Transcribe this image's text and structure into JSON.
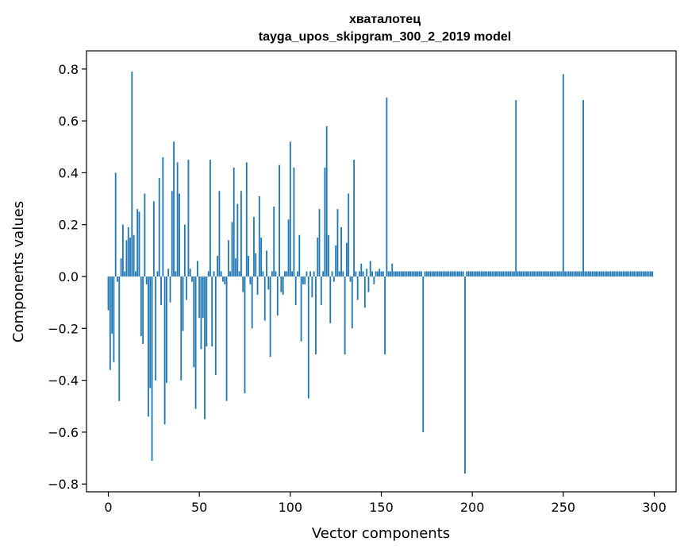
{
  "chart_data": {
    "type": "bar",
    "title": "хваталотец",
    "subtitle": "tayga_upos_skipgram_300_2_2019 model",
    "xlabel": "Vector components",
    "ylabel": "Components values",
    "xlim": [
      -12,
      312
    ],
    "ylim": [
      -0.83,
      0.87
    ],
    "xticks": [
      0,
      50,
      100,
      150,
      200,
      250,
      300
    ],
    "yticks": [
      -0.8,
      -0.6,
      -0.4,
      -0.2,
      0.0,
      0.2,
      0.4,
      0.6,
      0.8
    ],
    "ytick_labels": [
      "−0.8",
      "−0.6",
      "−0.4",
      "−0.2",
      "0.0",
      "0.2",
      "0.4",
      "0.6",
      "0.8"
    ],
    "grid": false,
    "bar_color": "#1f77b4",
    "values": [
      -0.13,
      -0.36,
      -0.22,
      -0.33,
      0.4,
      -0.02,
      -0.48,
      0.07,
      0.2,
      0.02,
      0.14,
      0.19,
      0.15,
      0.79,
      0.16,
      0.02,
      0.26,
      0.25,
      -0.23,
      -0.26,
      0.32,
      -0.03,
      -0.54,
      -0.43,
      -0.71,
      0.29,
      -0.4,
      0.02,
      0.38,
      -0.11,
      0.46,
      -0.57,
      -0.41,
      0.03,
      -0.1,
      0.33,
      0.52,
      0.02,
      0.44,
      0.32,
      -0.4,
      -0.21,
      0.2,
      -0.09,
      0.45,
      0.03,
      -0.02,
      -0.35,
      -0.51,
      0.06,
      -0.16,
      -0.28,
      -0.16,
      -0.55,
      -0.27,
      0.02,
      0.45,
      -0.27,
      0.02,
      -0.38,
      0.08,
      0.33,
      0.02,
      -0.02,
      -0.03,
      -0.48,
      0.14,
      0.02,
      0.21,
      0.42,
      0.07,
      0.28,
      0.02,
      0.33,
      -0.06,
      -0.45,
      0.44,
      0.08,
      -0.03,
      -0.2,
      0.23,
      0.09,
      -0.07,
      0.31,
      0.15,
      0.02,
      -0.17,
      0.1,
      -0.05,
      -0.31,
      0.02,
      0.27,
      0.02,
      -0.15,
      0.43,
      -0.06,
      -0.07,
      0.02,
      0.02,
      0.22,
      0.52,
      0.02,
      0.42,
      -0.11,
      0.02,
      0.16,
      -0.25,
      -0.03,
      -0.03,
      0.02,
      -0.47,
      0.02,
      -0.08,
      0.02,
      -0.3,
      0.15,
      0.26,
      -0.11,
      0.02,
      0.42,
      0.58,
      0.16,
      -0.18,
      0.02,
      -0.02,
      0.12,
      0.26,
      0.02,
      0.19,
      0.02,
      -0.3,
      0.13,
      0.32,
      -0.02,
      -0.2,
      0.45,
      0.02,
      -0.09,
      0.02,
      0.05,
      0.02,
      -0.12,
      0.03,
      -0.06,
      0.06,
      0.02,
      -0.03,
      0.02,
      0.02,
      0.03,
      0.02,
      0.02,
      -0.3,
      0.69,
      0.02,
      0.02,
      0.05,
      0.02,
      0.02,
      0.02,
      0.02,
      0.02,
      0.02,
      0.02,
      0.02,
      0.02,
      0.02,
      0.02,
      0.02,
      0.02,
      0.02,
      0.02,
      0.02,
      -0.6,
      0.02,
      0.02,
      0.02,
      0.02,
      0.02,
      0.02,
      0.02,
      0.02,
      0.02,
      0.02,
      0.02,
      0.02,
      0.02,
      0.02,
      0.02,
      0.02,
      0.02,
      0.02,
      0.02,
      0.02,
      0.02,
      0.02,
      -0.76,
      0.02,
      0.02,
      0.02,
      0.02,
      0.02,
      0.02,
      0.02,
      0.02,
      0.02,
      0.02,
      0.02,
      0.02,
      0.02,
      0.02,
      0.02,
      0.02,
      0.02,
      0.02,
      0.02,
      0.02,
      0.02,
      0.02,
      0.02,
      0.02,
      0.02,
      0.02,
      0.02,
      0.68,
      0.02,
      0.02,
      0.02,
      0.02,
      0.02,
      0.02,
      0.02,
      0.02,
      0.02,
      0.02,
      0.02,
      0.02,
      0.02,
      0.02,
      0.02,
      0.02,
      0.02,
      0.02,
      0.02,
      0.02,
      0.02,
      0.02,
      0.02,
      0.02,
      0.02,
      0.78,
      0.02,
      0.02,
      0.02,
      0.02,
      0.02,
      0.02,
      0.02,
      0.02,
      0.02,
      0.02,
      0.68,
      0.02,
      0.02,
      0.02,
      0.02,
      0.02,
      0.02,
      0.02,
      0.02,
      0.02,
      0.02,
      0.02,
      0.02,
      0.02,
      0.02,
      0.02,
      0.02,
      0.02,
      0.02,
      0.02,
      0.02,
      0.02,
      0.02,
      0.02,
      0.02,
      0.02,
      0.02,
      0.02,
      0.02,
      0.02,
      0.02,
      0.02,
      0.02,
      0.02,
      0.02,
      0.02,
      0.02,
      0.02,
      0.02
    ]
  }
}
